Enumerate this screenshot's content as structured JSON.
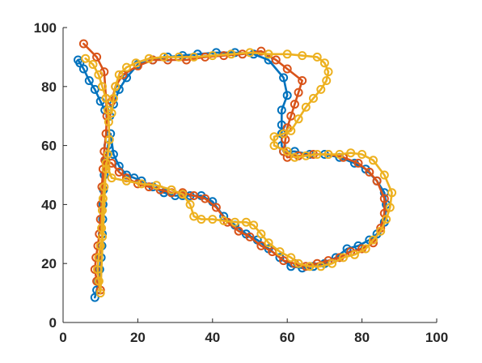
{
  "chart_data": {
    "type": "line",
    "xlim": [
      0,
      100
    ],
    "ylim": [
      0,
      100
    ],
    "xticks": [
      0,
      20,
      40,
      60,
      80,
      100
    ],
    "yticks": [
      0,
      20,
      40,
      60,
      80,
      100
    ],
    "xtick_labels": [
      "0",
      "20",
      "40",
      "60",
      "80",
      "100"
    ],
    "ytick_labels": [
      "0",
      "20",
      "40",
      "60",
      "80",
      "100"
    ],
    "grid": false,
    "legend": "none",
    "marker": "circle",
    "series": [
      {
        "color": "#0072BD",
        "points": [
          [
            8.5,
            8.5
          ],
          [
            9,
            11
          ],
          [
            9.5,
            14
          ],
          [
            9.8,
            18
          ],
          [
            10.2,
            22
          ],
          [
            10.4,
            26
          ],
          [
            10.5,
            30
          ],
          [
            10.6,
            35
          ],
          [
            10.7,
            40
          ],
          [
            10.8,
            45
          ],
          [
            11,
            50
          ],
          [
            11.4,
            55
          ],
          [
            12,
            60
          ],
          [
            12.7,
            64
          ],
          [
            13.5,
            57
          ],
          [
            15,
            53
          ],
          [
            17,
            50
          ],
          [
            19,
            49
          ],
          [
            21,
            48
          ],
          [
            24,
            46
          ],
          [
            27,
            44
          ],
          [
            30,
            43
          ],
          [
            32,
            43
          ],
          [
            34,
            43
          ],
          [
            37,
            43
          ],
          [
            40,
            41
          ],
          [
            43,
            36
          ],
          [
            46,
            33
          ],
          [
            49,
            30
          ],
          [
            52,
            28
          ],
          [
            55,
            25
          ],
          [
            58,
            22
          ],
          [
            61,
            19
          ],
          [
            64,
            18.5
          ],
          [
            67,
            19
          ],
          [
            70,
            20
          ],
          [
            73,
            22
          ],
          [
            76,
            25
          ],
          [
            79,
            26
          ],
          [
            82,
            28
          ],
          [
            84,
            30
          ],
          [
            86,
            34
          ],
          [
            86.5,
            40
          ],
          [
            86,
            44
          ],
          [
            84,
            48
          ],
          [
            81,
            52
          ],
          [
            78,
            54
          ],
          [
            74,
            56
          ],
          [
            70,
            57
          ],
          [
            66,
            57
          ],
          [
            62,
            58
          ],
          [
            59,
            58
          ],
          [
            58.5,
            60
          ],
          [
            58.5,
            64
          ],
          [
            58.5,
            67
          ],
          [
            58.5,
            72
          ],
          [
            60,
            77
          ],
          [
            59,
            83
          ],
          [
            55,
            89
          ],
          [
            51,
            91
          ],
          [
            46,
            91.5
          ],
          [
            41,
            91.5
          ],
          [
            36,
            91
          ],
          [
            32,
            90.5
          ],
          [
            28,
            90
          ],
          [
            24,
            89
          ],
          [
            20,
            87.5
          ],
          [
            17,
            83
          ],
          [
            15,
            79
          ],
          [
            13.5,
            74
          ],
          [
            12.5,
            70
          ],
          [
            11.2,
            72
          ],
          [
            10,
            75
          ],
          [
            8.5,
            79
          ],
          [
            7,
            82
          ],
          [
            5.5,
            86
          ],
          [
            4.5,
            88
          ],
          [
            4,
            89
          ]
        ]
      },
      {
        "color": "#D95319",
        "points": [
          [
            5.5,
            94.5
          ],
          [
            9,
            90
          ],
          [
            11,
            85
          ],
          [
            11.5,
            76
          ],
          [
            11.7,
            70
          ],
          [
            11.5,
            64
          ],
          [
            11,
            58
          ],
          [
            10.7,
            52
          ],
          [
            10.4,
            46
          ],
          [
            10.2,
            40
          ],
          [
            10,
            35
          ],
          [
            9.7,
            30
          ],
          [
            9.3,
            26
          ],
          [
            8.8,
            22
          ],
          [
            8.5,
            18
          ],
          [
            9,
            14
          ],
          [
            10,
            11
          ],
          [
            11.2,
            55
          ],
          [
            13,
            54
          ],
          [
            15,
            51
          ],
          [
            17,
            49
          ],
          [
            20,
            47
          ],
          [
            23,
            46
          ],
          [
            26,
            45
          ],
          [
            29,
            44
          ],
          [
            32,
            44
          ],
          [
            35,
            43
          ],
          [
            38,
            42
          ],
          [
            41,
            39
          ],
          [
            44,
            34
          ],
          [
            47,
            31
          ],
          [
            50,
            29
          ],
          [
            53,
            26
          ],
          [
            56,
            24
          ],
          [
            59,
            21
          ],
          [
            62,
            20
          ],
          [
            65,
            19
          ],
          [
            68,
            20
          ],
          [
            71,
            21
          ],
          [
            74,
            22
          ],
          [
            77,
            24
          ],
          [
            80,
            25
          ],
          [
            83,
            27
          ],
          [
            85,
            32
          ],
          [
            86,
            37
          ],
          [
            86,
            42
          ],
          [
            84,
            48
          ],
          [
            82,
            51
          ],
          [
            79,
            54
          ],
          [
            75,
            56
          ],
          [
            71,
            57
          ],
          [
            67,
            57
          ],
          [
            63,
            56.5
          ],
          [
            60,
            56
          ],
          [
            59,
            58
          ],
          [
            59.5,
            62
          ],
          [
            60,
            66
          ],
          [
            61,
            70
          ],
          [
            62,
            74
          ],
          [
            63,
            78
          ],
          [
            64,
            82
          ],
          [
            60,
            86
          ],
          [
            57,
            89
          ],
          [
            53,
            92
          ],
          [
            48,
            91
          ],
          [
            43,
            90.5
          ],
          [
            38,
            90
          ],
          [
            33,
            89
          ],
          [
            28,
            89
          ],
          [
            24,
            89
          ],
          [
            20,
            87
          ],
          [
            16,
            84
          ],
          [
            14,
            80
          ],
          [
            13,
            75
          ]
        ]
      },
      {
        "color": "#EDB120",
        "points": [
          [
            6,
            89.5
          ],
          [
            8,
            87.5
          ],
          [
            9.5,
            84
          ],
          [
            10.5,
            80
          ],
          [
            11.5,
            76
          ],
          [
            12,
            72
          ],
          [
            12.2,
            68
          ],
          [
            12.4,
            62
          ],
          [
            12,
            57
          ],
          [
            11.5,
            52
          ],
          [
            11,
            46
          ],
          [
            10.7,
            42
          ],
          [
            10.5,
            38
          ],
          [
            10.3,
            32
          ],
          [
            10.5,
            29
          ],
          [
            10,
            26
          ],
          [
            9.5,
            22
          ],
          [
            9.2,
            18
          ],
          [
            9.6,
            14
          ],
          [
            10,
            10
          ],
          [
            11.5,
            54
          ],
          [
            13,
            49
          ],
          [
            17,
            48
          ],
          [
            21,
            47
          ],
          [
            25,
            46.5
          ],
          [
            29,
            45
          ],
          [
            32,
            43.5
          ],
          [
            34,
            40
          ],
          [
            35,
            36
          ],
          [
            37,
            35
          ],
          [
            40,
            35
          ],
          [
            43,
            34.5
          ],
          [
            46,
            34
          ],
          [
            49,
            34
          ],
          [
            51,
            33
          ],
          [
            53,
            30
          ],
          [
            55,
            27
          ],
          [
            58,
            24
          ],
          [
            61,
            22
          ],
          [
            63,
            20
          ],
          [
            66,
            19
          ],
          [
            69,
            19
          ],
          [
            72,
            20
          ],
          [
            75,
            22
          ],
          [
            78,
            23
          ],
          [
            81,
            25
          ],
          [
            83,
            28
          ],
          [
            85,
            31
          ],
          [
            86.5,
            35
          ],
          [
            87.5,
            39
          ],
          [
            88,
            44
          ],
          [
            86,
            50
          ],
          [
            83,
            55
          ],
          [
            80,
            57
          ],
          [
            77,
            57.5
          ],
          [
            74,
            57
          ],
          [
            71,
            57
          ],
          [
            68,
            57
          ],
          [
            65,
            56.5
          ],
          [
            62,
            56
          ],
          [
            60,
            58
          ],
          [
            56.5,
            60
          ],
          [
            56.5,
            63
          ],
          [
            59,
            64
          ],
          [
            61,
            65
          ],
          [
            63,
            69
          ],
          [
            65,
            73
          ],
          [
            67,
            76
          ],
          [
            69,
            79
          ],
          [
            70.5,
            82
          ],
          [
            71,
            85
          ],
          [
            70,
            88
          ],
          [
            68,
            90
          ],
          [
            64,
            90.5
          ],
          [
            60,
            91
          ],
          [
            55,
            91
          ],
          [
            50,
            91.5
          ],
          [
            45,
            91
          ],
          [
            40,
            90.5
          ],
          [
            35,
            90
          ],
          [
            31,
            90
          ],
          [
            27,
            90
          ],
          [
            23,
            89.5
          ],
          [
            19.5,
            88
          ],
          [
            17,
            86.5
          ],
          [
            15,
            84
          ],
          [
            14,
            80
          ],
          [
            13.5,
            76
          ],
          [
            13,
            71
          ]
        ]
      }
    ]
  }
}
